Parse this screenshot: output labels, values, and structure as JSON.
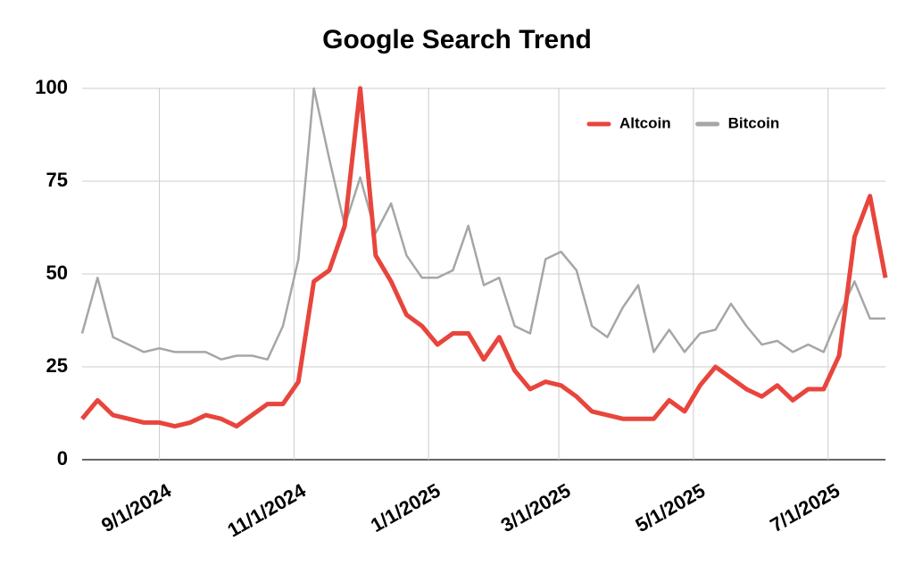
{
  "chart_data": {
    "type": "line",
    "title": "Google Search Trend",
    "x": [
      "2024-07-28",
      "2024-08-04",
      "2024-08-11",
      "2024-08-18",
      "2024-08-25",
      "2024-09-01",
      "2024-09-08",
      "2024-09-15",
      "2024-09-22",
      "2024-09-29",
      "2024-10-06",
      "2024-10-13",
      "2024-10-20",
      "2024-10-27",
      "2024-11-03",
      "2024-11-10",
      "2024-11-17",
      "2024-11-24",
      "2024-12-01",
      "2024-12-08",
      "2024-12-15",
      "2024-12-22",
      "2024-12-29",
      "2025-01-05",
      "2025-01-12",
      "2025-01-19",
      "2025-01-26",
      "2025-02-02",
      "2025-02-09",
      "2025-02-16",
      "2025-02-23",
      "2025-03-02",
      "2025-03-09",
      "2025-03-16",
      "2025-03-23",
      "2025-03-30",
      "2025-04-06",
      "2025-04-13",
      "2025-04-20",
      "2025-04-27",
      "2025-05-04",
      "2025-05-11",
      "2025-05-18",
      "2025-05-25",
      "2025-06-01",
      "2025-06-08",
      "2025-06-15",
      "2025-06-22",
      "2025-06-29",
      "2025-07-06",
      "2025-07-13",
      "2025-07-20",
      "2025-07-27"
    ],
    "series": [
      {
        "name": "Altcoin",
        "color": "#e8453c",
        "width": 5,
        "values": [
          11,
          16,
          12,
          11,
          10,
          10,
          9,
          10,
          12,
          11,
          9,
          12,
          15,
          15,
          21,
          48,
          51,
          63,
          100,
          55,
          48,
          39,
          36,
          31,
          34,
          34,
          27,
          33,
          24,
          19,
          21,
          20,
          17,
          13,
          12,
          11,
          11,
          11,
          16,
          13,
          20,
          25,
          22,
          19,
          17,
          20,
          16,
          19,
          19,
          28,
          60,
          71,
          49
        ]
      },
      {
        "name": "Bitcoin",
        "color": "#a6a6a6",
        "width": 2.5,
        "values": [
          34,
          49,
          33,
          31,
          29,
          30,
          29,
          29,
          29,
          27,
          28,
          28,
          27,
          36,
          54,
          100,
          81,
          63,
          76,
          61,
          69,
          55,
          49,
          49,
          51,
          63,
          47,
          49,
          36,
          34,
          54,
          56,
          51,
          36,
          33,
          41,
          47,
          29,
          35,
          29,
          34,
          35,
          42,
          36,
          31,
          32,
          29,
          31,
          29,
          39,
          48,
          38,
          38
        ]
      }
    ],
    "xlim": [
      "2024-07-28",
      "2025-07-27"
    ],
    "xticks": [
      {
        "value": "2024-09-01",
        "label": "9/1/2024"
      },
      {
        "value": "2024-11-01",
        "label": "11/1/2024"
      },
      {
        "value": "2025-01-01",
        "label": "1/1/2025"
      },
      {
        "value": "2025-03-01",
        "label": "3/1/2025"
      },
      {
        "value": "2025-05-01",
        "label": "5/1/2025"
      },
      {
        "value": "2025-07-01",
        "label": "7/1/2025"
      }
    ],
    "ylim": [
      0,
      100
    ],
    "yticks": [
      0,
      25,
      50,
      75,
      100
    ],
    "grid": true,
    "legend": "top-right"
  }
}
